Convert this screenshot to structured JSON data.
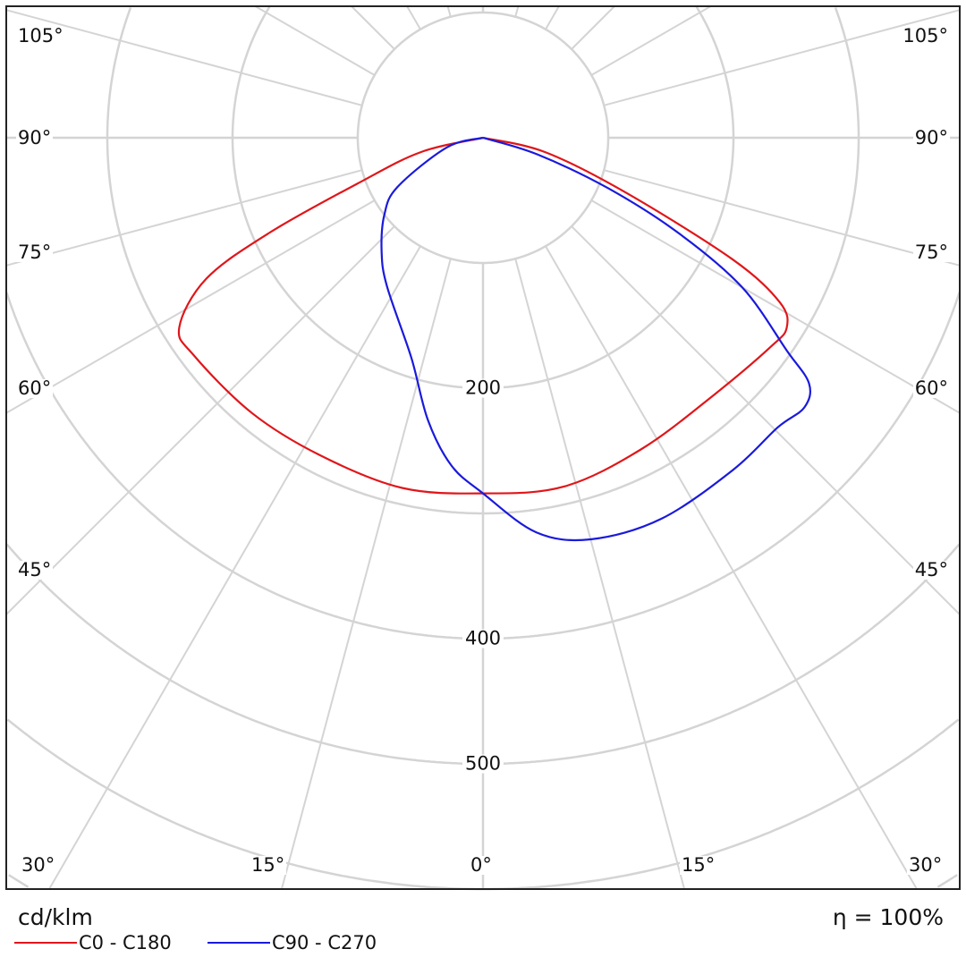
{
  "chart_data": {
    "type": "polar",
    "unit": "cd/klm",
    "efficiency": "η = 100%",
    "radial_ticks": [
      100,
      200,
      300,
      400,
      500,
      600,
      700
    ],
    "radial_tick_labels": [
      "200",
      "400",
      "500"
    ],
    "angle_step_deg": 15,
    "angle_labels_side": [
      "105°",
      "90°",
      "75°",
      "60°",
      "45°"
    ],
    "angle_labels_bottom": [
      "30°",
      "15°",
      "0°",
      "15°",
      "30°"
    ],
    "series": [
      {
        "name": "C0 - C180",
        "color": "#e0161a",
        "points": [
          [
            -90,
            0
          ],
          [
            -77,
            51
          ],
          [
            -70,
            106
          ],
          [
            -66,
            187
          ],
          [
            -63,
            248
          ],
          [
            -58,
            286
          ],
          [
            -53,
            289
          ],
          [
            -40,
            287
          ],
          [
            -27,
            285
          ],
          [
            -13,
            287
          ],
          [
            0,
            284
          ],
          [
            13,
            286
          ],
          [
            27,
            279
          ],
          [
            42,
            276
          ],
          [
            54,
            284
          ],
          [
            58,
            286
          ],
          [
            61,
            271
          ],
          [
            64,
            222
          ],
          [
            69,
            122
          ],
          [
            77,
            51
          ],
          [
            90,
            0
          ]
        ]
      },
      {
        "name": "C90 - C270",
        "color": "#1a1adc",
        "points": [
          [
            -90,
            0
          ],
          [
            -75,
            30
          ],
          [
            -60,
            79
          ],
          [
            -52,
            100
          ],
          [
            -42,
            121
          ],
          [
            -33,
            141
          ],
          [
            -18,
            185
          ],
          [
            -11,
            230
          ],
          [
            -5.5,
            263
          ],
          [
            0,
            284
          ],
          [
            7.7,
            318
          ],
          [
            15,
            332
          ],
          [
            25,
            336
          ],
          [
            37,
            332
          ],
          [
            45.5,
            330
          ],
          [
            50,
            335
          ],
          [
            53,
            326
          ],
          [
            55,
            296
          ],
          [
            60,
            239
          ],
          [
            64,
            174
          ],
          [
            68,
            108
          ],
          [
            73,
            45
          ],
          [
            90,
            0
          ]
        ]
      }
    ]
  }
}
